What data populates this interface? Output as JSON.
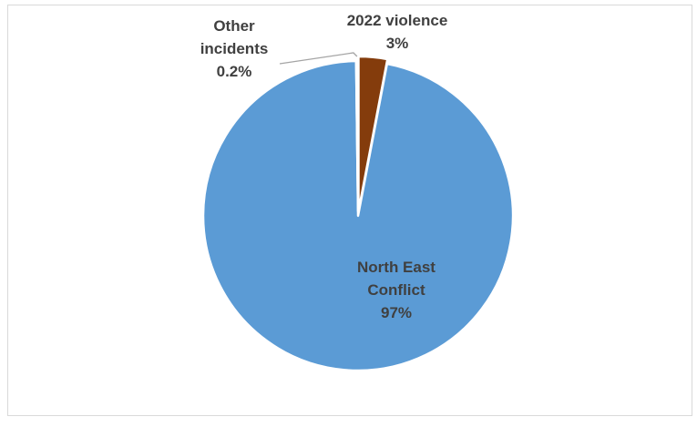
{
  "chart_data": {
    "type": "pie",
    "title": "",
    "slices": [
      {
        "label_lines": [
          "2022 violence",
          "3%"
        ],
        "value": 3,
        "color": "#843c0c"
      },
      {
        "label_lines": [
          "North East",
          "Conflict",
          "97%"
        ],
        "value": 97,
        "color": "#5b9bd5"
      },
      {
        "label_lines": [
          "Other",
          "incidents",
          "0.2%"
        ],
        "value": 0.2,
        "color": "#a5a5a5"
      }
    ],
    "start_angle": "12 o'clock",
    "direction": "clockwise",
    "legend": "none",
    "label_text_color": "#404040",
    "slice_border_color": "#ffffff"
  }
}
